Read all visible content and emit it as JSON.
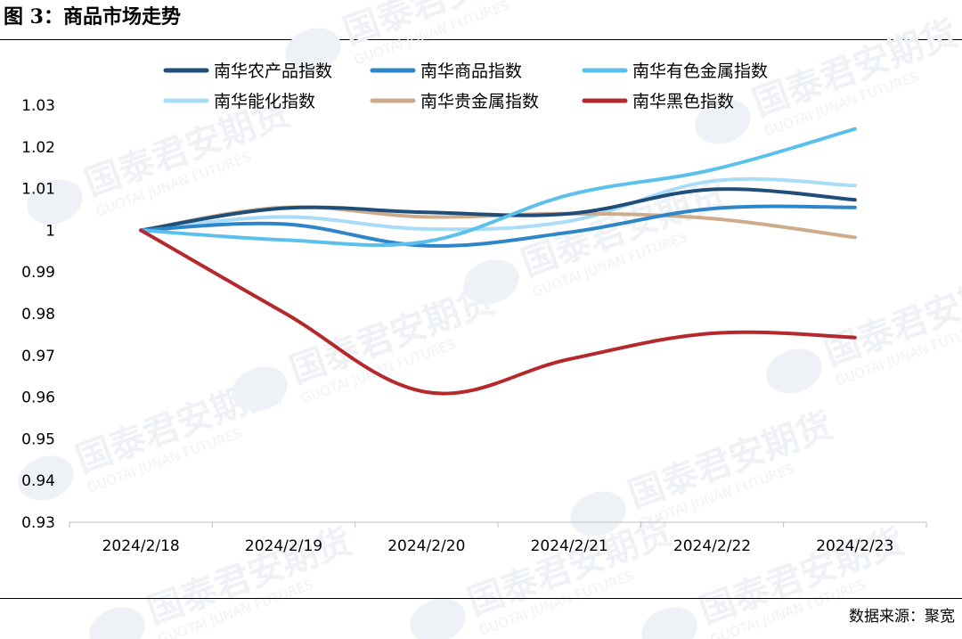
{
  "page": {
    "title": "图 3：商品市场走势",
    "source_label": "数据来源：",
    "source_name": "聚宽",
    "watermark_cn": "国泰君安期货",
    "watermark_en": "GUOTAI JUNAN FUTURES"
  },
  "chart_data": {
    "type": "line",
    "title": "",
    "xlabel": "",
    "ylabel": "",
    "x": [
      "2024/2/18",
      "2024/2/19",
      "2024/2/20",
      "2024/2/21",
      "2024/2/22",
      "2024/2/23"
    ],
    "ylim": [
      0.93,
      1.03
    ],
    "yticks": [
      "1.03",
      "1.02",
      "1.01",
      "1",
      "0.99",
      "0.98",
      "0.97",
      "0.96",
      "0.95",
      "0.94",
      "0.93"
    ],
    "grid": false,
    "legend_position": "top",
    "series": [
      {
        "name": "南华农产品指数",
        "color": "#1f4e79",
        "values": [
          1.0,
          1.0053,
          1.0043,
          1.004,
          1.0098,
          1.0073
        ]
      },
      {
        "name": "南华商品指数",
        "color": "#2e86c9",
        "values": [
          1.0,
          1.0015,
          0.9963,
          0.9995,
          1.0052,
          1.0055
        ]
      },
      {
        "name": "南华有色金属指数",
        "color": "#5bc0eb",
        "values": [
          1.0,
          0.9977,
          0.9973,
          1.0085,
          1.0145,
          1.0243
        ]
      },
      {
        "name": "南华能化指数",
        "color": "#a8dcf7",
        "values": [
          1.0,
          1.0032,
          1.0003,
          1.0022,
          1.0118,
          1.0107
        ]
      },
      {
        "name": "南华贵金属指数",
        "color": "#cfab8d",
        "values": [
          1.0,
          1.0055,
          1.0032,
          1.004,
          1.0028,
          0.9983
        ]
      },
      {
        "name": "南华黑色指数",
        "color": "#b5282c",
        "values": [
          1.0,
          0.9803,
          0.9612,
          0.9691,
          0.9753,
          0.9743
        ]
      }
    ]
  }
}
